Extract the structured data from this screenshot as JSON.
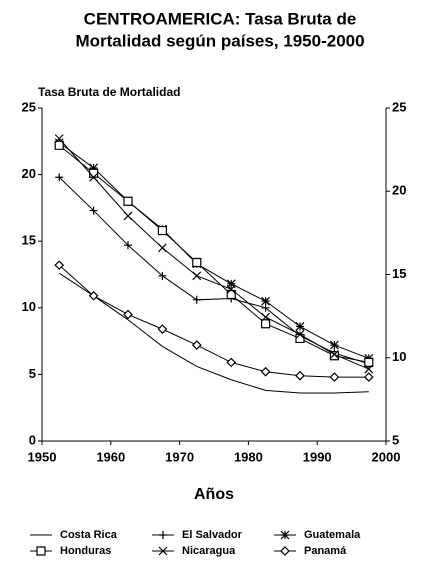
{
  "chart_data": {
    "type": "line",
    "title": "CENTROAMERICA: Tasa Bruta de",
    "subtitle": "Mortalidad según países, 1950-2000",
    "y_label": "Tasa Bruta de Mortalidad",
    "x_label": "Años",
    "x": [
      1952.5,
      1957.5,
      1962.5,
      1967.5,
      1972.5,
      1977.5,
      1982.5,
      1987.5,
      1992.5,
      1997.5
    ],
    "xlim": [
      1950,
      2000
    ],
    "xticks": [
      1950,
      1960,
      1970,
      1980,
      1990,
      2000
    ],
    "ylim": [
      0,
      25
    ],
    "yticks": [
      0,
      5,
      10,
      15,
      20,
      25
    ],
    "y2lim": [
      5,
      25
    ],
    "y2ticks": [
      5,
      10,
      15,
      20,
      25
    ],
    "grid": false,
    "legend": "bottom",
    "series": [
      {
        "name": "Costa Rica",
        "color": "#000000",
        "marker": "none",
        "values": [
          12.6,
          10.9,
          9.1,
          7.1,
          5.6,
          4.6,
          3.8,
          3.6,
          3.6,
          3.7
        ]
      },
      {
        "name": "El Salvador",
        "color": "#000000",
        "marker": "plus",
        "values": [
          19.8,
          17.3,
          14.7,
          12.4,
          10.6,
          10.7,
          10.0,
          7.9,
          6.6,
          5.8
        ]
      },
      {
        "name": "Guatemala",
        "color": "#000000",
        "marker": "asterisk",
        "values": [
          22.4,
          20.5,
          18.0,
          15.9,
          13.3,
          11.8,
          10.5,
          8.6,
          7.2,
          6.2
        ]
      },
      {
        "name": "Honduras",
        "color": "#000000",
        "marker": "square",
        "values": [
          22.2,
          20.1,
          18.0,
          15.8,
          13.4,
          11.0,
          8.8,
          7.7,
          6.4,
          5.9
        ]
      },
      {
        "name": "Nicaragua",
        "color": "#000000",
        "marker": "x",
        "values": [
          22.7,
          19.8,
          16.9,
          14.5,
          12.4,
          11.4,
          9.3,
          8.0,
          6.5,
          5.4
        ]
      },
      {
        "name": "Panamá",
        "color": "#000000",
        "marker": "diamond",
        "values": [
          13.2,
          10.9,
          9.5,
          8.4,
          7.2,
          5.9,
          5.2,
          4.9,
          4.8,
          4.8
        ]
      }
    ]
  }
}
